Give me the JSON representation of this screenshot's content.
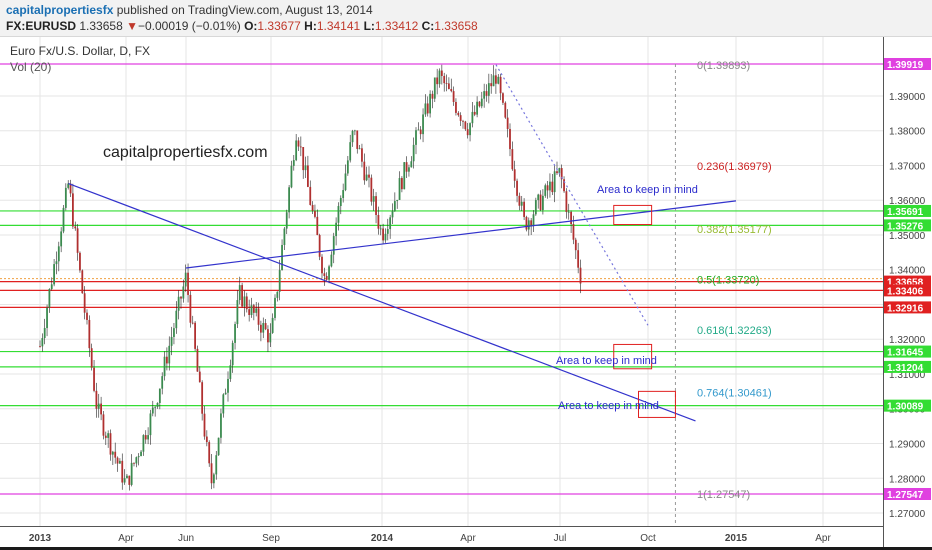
{
  "header": {
    "author": "capitalpropertiesfx",
    "published_text": "published on TradingView.com, August 13, 2014",
    "symbol": "FX:EURUSD",
    "last_price": "1.33658",
    "change_arrow": "▼",
    "change_text": "−0.00019 (−0.01%)",
    "o_label": "O:",
    "o_value": "1.33677",
    "h_label": "H:",
    "h_value": "1.34141",
    "l_label": "L:",
    "l_value": "1.33412",
    "c_label": "C:",
    "c_value": "1.33658"
  },
  "chart_title": "Euro Fx/U.S. Dollar, D, FX",
  "volume_label": "Vol (20)",
  "watermark": "capitalpropertiesfx.com",
  "colors": {
    "up": "#3b8a4f",
    "down": "#b03030",
    "magenta": "#e040e0",
    "green": "#33dd33",
    "red": "#e02020",
    "blue": "#3333cc",
    "grid": "#e6e6e6"
  },
  "chart_data": {
    "type": "candlestick",
    "title": "Euro Fx/U.S. Dollar, D, FX",
    "x_ticks": [
      "2013",
      "Apr",
      "Jun",
      "Sep",
      "2014",
      "Apr",
      "Jul",
      "Oct",
      "2015",
      "Apr"
    ],
    "y_ticks": [
      1.27,
      1.28,
      1.29,
      1.3,
      1.31,
      1.32,
      1.33,
      1.34,
      1.35,
      1.36,
      1.37,
      1.38,
      1.39
    ],
    "ylim": [
      1.2655,
      1.4035
    ],
    "grid": true,
    "price_path": [
      {
        "x": "2013",
        "y": 1.318
      },
      {
        "x": "2013-02",
        "y": 1.365
      },
      {
        "x": "2013-03",
        "y": 1.3
      },
      {
        "x": "Apr",
        "y": 1.278
      },
      {
        "x": "2013-05",
        "y": 1.3
      },
      {
        "x": "Jun",
        "y": 1.338
      },
      {
        "x": "2013-07",
        "y": 1.278
      },
      {
        "x": "2013-08",
        "y": 1.333
      },
      {
        "x": "Sep",
        "y": 1.32
      },
      {
        "x": "2013-10",
        "y": 1.381
      },
      {
        "x": "2013-11",
        "y": 1.337
      },
      {
        "x": "2013-12",
        "y": 1.38
      },
      {
        "x": "2014",
        "y": 1.35
      },
      {
        "x": "2014-03",
        "y": 1.396
      },
      {
        "x": "Apr",
        "y": 1.381
      },
      {
        "x": "2014-05",
        "y": 1.396
      },
      {
        "x": "2014-06",
        "y": 1.353
      },
      {
        "x": "Jul",
        "y": 1.368
      },
      {
        "x": "2014-08",
        "y": 1.337
      }
    ],
    "fib_levels": [
      {
        "label": "0(1.39893)",
        "value": 1.39893,
        "color": "#888888"
      },
      {
        "label": "0.236(1.36979)",
        "value": 1.36979,
        "color": "#cc2222"
      },
      {
        "label": "0.382(1.35177)",
        "value": 1.35177,
        "color": "#99bb33"
      },
      {
        "label": "0.5(1.33720)",
        "value": 1.3372,
        "color": "#22aa22"
      },
      {
        "label": "0.618(1.32263)",
        "value": 1.32263,
        "color": "#22aa88"
      },
      {
        "label": "0.764(1.30461)",
        "value": 1.30461,
        "color": "#3399cc"
      },
      {
        "label": "1(1.27547)",
        "value": 1.27547,
        "color": "#888888"
      }
    ],
    "horizontal_lines": [
      {
        "label": "1.39919",
        "value": 1.39919,
        "color": "#e040e0"
      },
      {
        "label": "1.35691",
        "value": 1.35691,
        "color": "#33dd33"
      },
      {
        "label": "1.35276",
        "value": 1.35276,
        "color": "#33dd33"
      },
      {
        "label": "1.33658",
        "value": 1.33658,
        "color": "#e02020"
      },
      {
        "label": "1.33406",
        "value": 1.33406,
        "color": "#e02020"
      },
      {
        "label": "1.32916",
        "value": 1.32916,
        "color": "#e02020"
      },
      {
        "label": "1.31645",
        "value": 1.31645,
        "color": "#33dd33"
      },
      {
        "label": "1.31204",
        "value": 1.31204,
        "color": "#33dd33"
      },
      {
        "label": "1.30089",
        "value": 1.30089,
        "color": "#33dd33"
      },
      {
        "label": "1.27547",
        "value": 1.27547,
        "color": "#e040e0"
      }
    ],
    "trendlines": [
      {
        "from": {
          "x": "2013-02",
          "y": 1.3648
        },
        "to": {
          "x": "2014-12",
          "y": 1.2965
        },
        "color": "#3333cc"
      },
      {
        "from": {
          "x": "Jun",
          "y": 1.3405
        },
        "to": {
          "x": "2015",
          "y": 1.3598
        },
        "color": "#3333cc"
      },
      {
        "from": {
          "x": "2014-05",
          "y": 1.399
        },
        "to": {
          "x": "Oct",
          "y": 1.324
        },
        "color": "#7777dd",
        "dashed": true
      }
    ],
    "annotations": [
      {
        "text": "Area to keep in mind",
        "x": "Oct",
        "y": 1.3595
      },
      {
        "text": "Area to keep in mind",
        "x": "Oct",
        "y": 1.315
      },
      {
        "text": "Area to keep in mind",
        "x": "Oct",
        "y": 1.301
      }
    ],
    "boxes": [
      {
        "x0": "2014-09-05",
        "x1": "2014-10-15",
        "y0": 1.3585,
        "y1": 1.353
      },
      {
        "x0": "2014-09-05",
        "x1": "2014-10-15",
        "y0": 1.3185,
        "y1": 1.3115
      },
      {
        "x0": "2014-10-01",
        "x1": "2014-11-10",
        "y0": 1.305,
        "y1": 1.2975
      }
    ],
    "time_marker": "2014-11-10"
  }
}
